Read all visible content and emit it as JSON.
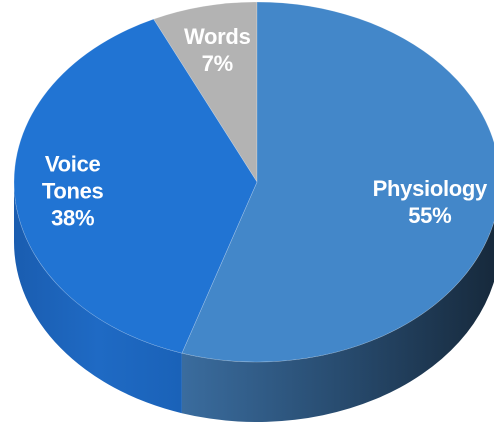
{
  "chart_data": {
    "type": "pie",
    "style": "3d",
    "title": "",
    "slices": [
      {
        "name": "Words",
        "value": 7,
        "value_label": "7%",
        "label_lines": [
          "Words"
        ],
        "color": "#b3b3b3",
        "side_color": "#8f8f8f"
      },
      {
        "name": "Physiology",
        "value": 55,
        "value_label": "55%",
        "label_lines": [
          "Physiology"
        ],
        "color": "#4387c9",
        "side_color": "#26486a"
      },
      {
        "name": "Voice Tones",
        "value": 38,
        "value_label": "38%",
        "label_lines": [
          "Voice",
          "Tones"
        ],
        "color": "#2174d3",
        "side_color": "#1b5aa6"
      }
    ],
    "legend": "none",
    "data_labels": "inside"
  }
}
